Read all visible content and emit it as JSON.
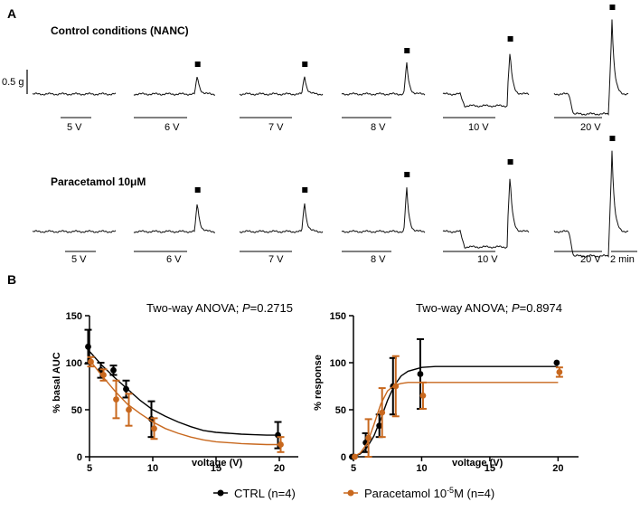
{
  "panels": {
    "a": "A",
    "b": "B"
  },
  "traces": {
    "row1_title": "Control conditions (NANC)",
    "row2_title": "Paracetamol 10μM",
    "scale_bar": "0.5 g",
    "time_bar": "2 min",
    "row1_voltages": [
      "5 V",
      "6 V",
      "7 V",
      "8 V",
      "10 V",
      "20 V"
    ],
    "row2_voltages": [
      "5 V",
      "6 V",
      "7 V",
      "8 V",
      "10 V",
      "20 V"
    ]
  },
  "legend": {
    "ctrl": "CTRL (n=4)",
    "para_prefix": "Paracetamol 10",
    "para_sup": "-5",
    "para_suffix": "M (n=4)"
  },
  "colors": {
    "ctrl": "#000000",
    "paracetamol": "#c8681e"
  },
  "chart_data": [
    {
      "type": "scatter",
      "title_prefix": "Two-way ANOVA; ",
      "p_label": "P",
      "p_value": "=0.2715",
      "xlabel": "voltage (V)",
      "ylabel": "% basal AUC",
      "xlim": [
        5,
        21.5
      ],
      "ylim": [
        0,
        150
      ],
      "xticks": [
        "5",
        "10",
        "15",
        "20"
      ],
      "yticks": [
        "0",
        "50",
        "100",
        "150"
      ],
      "series": [
        {
          "name": "CTRL",
          "x": [
            5,
            6,
            7,
            8,
            10,
            20
          ],
          "y": [
            117,
            92,
            92,
            72,
            40,
            23
          ],
          "err": [
            18,
            8,
            5,
            9,
            19,
            14
          ],
          "fit_x": [
            5,
            6,
            7,
            8,
            9,
            10,
            11,
            12,
            13,
            14,
            15,
            16,
            17,
            18,
            19,
            20
          ],
          "fit_y": [
            112,
            97,
            84,
            72,
            60,
            50,
            43,
            37,
            32,
            28,
            26,
            25,
            24,
            23.5,
            23,
            23
          ]
        },
        {
          "name": "Paracetamol",
          "x": [
            5,
            6,
            7,
            8,
            10,
            20
          ],
          "y": [
            101,
            87,
            61,
            50,
            30,
            13
          ],
          "err": [
            5,
            6,
            20,
            17,
            11,
            8
          ],
          "fit_x": [
            5,
            6,
            7,
            8,
            9,
            10,
            11,
            12,
            13,
            14,
            15,
            16,
            17,
            18,
            19,
            20
          ],
          "fit_y": [
            103,
            86,
            70,
            56,
            46,
            37,
            30,
            25,
            21,
            18,
            16,
            15,
            14,
            13.5,
            13,
            13
          ]
        }
      ]
    },
    {
      "type": "scatter",
      "title_prefix": "Two-way ANOVA; ",
      "p_label": "P",
      "p_value": "=0.8974",
      "xlabel": "voltage (V)",
      "ylabel": "% response",
      "xlim": [
        5,
        21.5
      ],
      "ylim": [
        0,
        150
      ],
      "xticks": [
        "5",
        "10",
        "15",
        "20"
      ],
      "yticks": [
        "0",
        "50",
        "100",
        "150"
      ],
      "series": [
        {
          "name": "CTRL",
          "x": [
            5,
            6,
            7,
            8,
            10,
            20
          ],
          "y": [
            0,
            15,
            33,
            75,
            88,
            100
          ],
          "err": [
            0,
            10,
            12,
            30,
            37,
            0
          ],
          "fit_x": [
            5,
            5.5,
            6,
            6.5,
            7,
            7.5,
            8,
            8.5,
            9,
            10,
            11,
            12,
            15,
            20
          ],
          "fit_y": [
            0,
            3,
            10,
            22,
            40,
            60,
            76,
            86,
            91,
            95,
            96,
            96,
            96,
            96
          ]
        },
        {
          "name": "Paracetamol",
          "x": [
            5,
            6,
            7,
            8,
            10,
            20
          ],
          "y": [
            0,
            20,
            47,
            75,
            65,
            90
          ],
          "err": [
            0,
            20,
            26,
            32,
            14,
            5
          ],
          "fit_x": [
            5,
            5.5,
            6,
            6.5,
            7,
            7.5,
            8,
            8.5,
            9,
            10,
            11,
            12,
            15,
            20
          ],
          "fit_y": [
            0,
            4,
            14,
            34,
            56,
            70,
            76,
            78,
            79,
            79,
            79,
            79,
            79,
            79
          ]
        }
      ]
    }
  ]
}
